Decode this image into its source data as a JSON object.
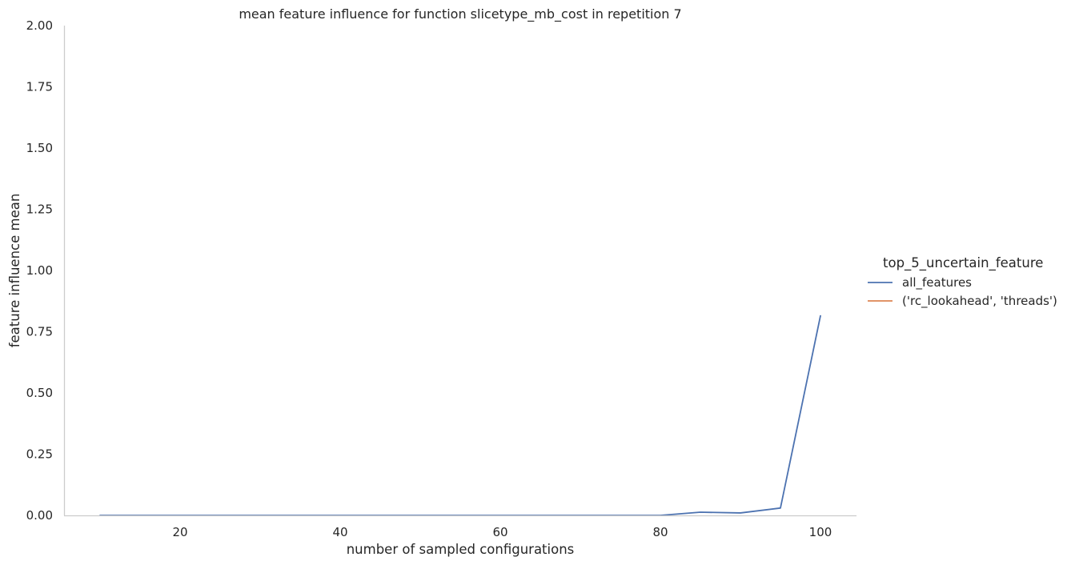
{
  "chart_data": {
    "type": "line",
    "title": "mean feature influence for function slicetype_mb_cost in repetition 7",
    "xlabel": "number of sampled configurations",
    "ylabel": "feature influence mean",
    "xlim": [
      5.5,
      104.5
    ],
    "ylim": [
      0,
      2.0
    ],
    "xticks": [
      20,
      40,
      60,
      80,
      100
    ],
    "xtick_labels": [
      "20",
      "40",
      "60",
      "80",
      "100"
    ],
    "yticks": [
      0,
      0.25,
      0.5,
      0.75,
      1.0,
      1.25,
      1.5,
      1.75,
      2.0
    ],
    "ytick_labels": [
      "0.00",
      "0.25",
      "0.50",
      "0.75",
      "1.00",
      "1.25",
      "1.50",
      "1.75",
      "2.00"
    ],
    "grid": false,
    "legend": {
      "title": "top_5_uncertain_feature",
      "placement": "right"
    },
    "series": [
      {
        "name": "all_features",
        "color": "#4c72b0",
        "x": [
          10,
          15,
          20,
          25,
          30,
          35,
          40,
          45,
          50,
          55,
          60,
          65,
          70,
          75,
          80,
          85,
          90,
          95,
          100
        ],
        "y": [
          0,
          0,
          0,
          0,
          0,
          0,
          0,
          0,
          0,
          0,
          0,
          0,
          0,
          0,
          0,
          0.013,
          0.01,
          0.03,
          0.815
        ]
      },
      {
        "name": "('rc_lookahead', 'threads')",
        "color": "#dd8452",
        "x": [],
        "y": []
      }
    ]
  }
}
